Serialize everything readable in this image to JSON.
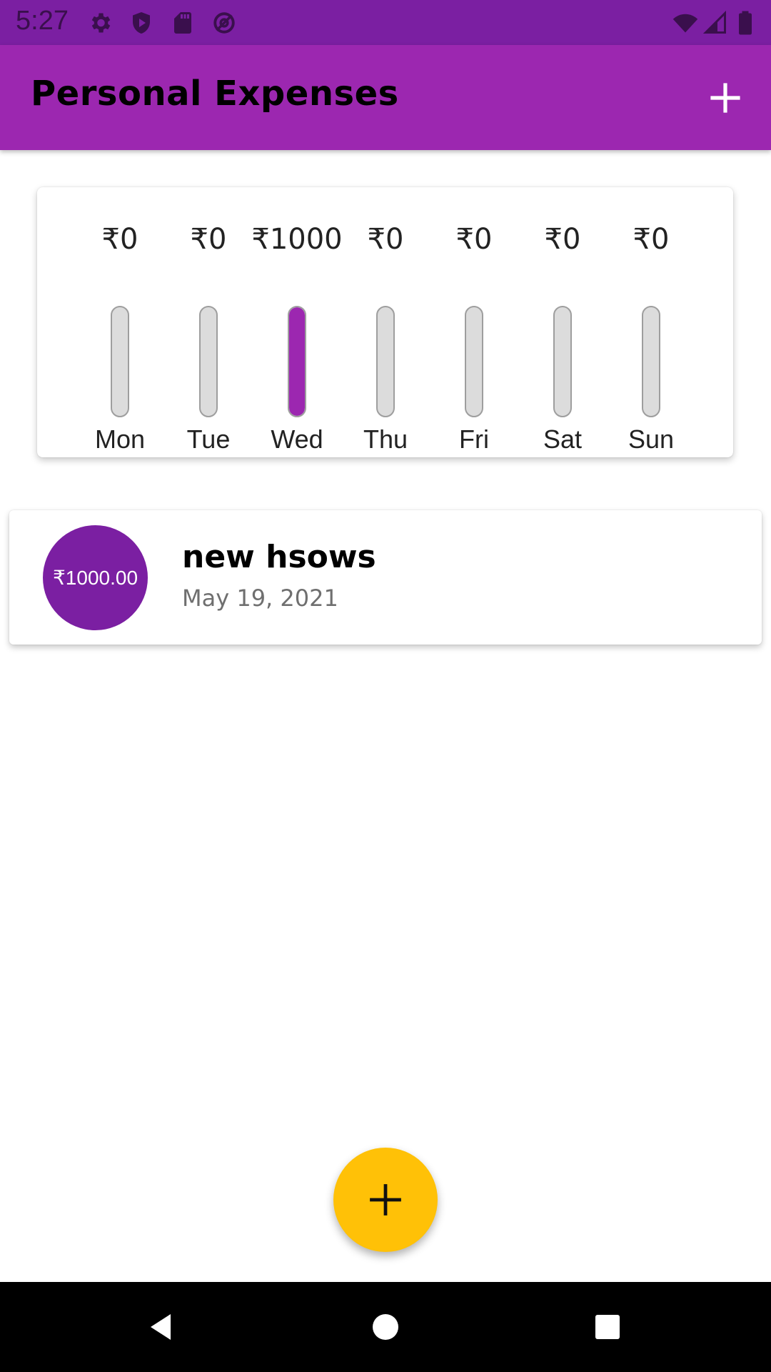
{
  "status_bar": {
    "time": "5:27",
    "icons": [
      "gear-icon",
      "shield-icon",
      "sd-card-icon",
      "at-sign-icon",
      "wifi-icon",
      "signal-icon",
      "battery-icon"
    ]
  },
  "app_bar": {
    "title": "Personal Expenses",
    "add_icon": "plus-icon"
  },
  "chart_data": {
    "type": "bar",
    "categories": [
      "Mon",
      "Tue",
      "Wed",
      "Thu",
      "Fri",
      "Sat",
      "Sun"
    ],
    "amount_labels": [
      "₹0",
      "₹0",
      "₹1000",
      "₹0",
      "₹0",
      "₹0",
      "₹0"
    ],
    "values": [
      0,
      0,
      1000,
      0,
      0,
      0,
      0
    ],
    "fill_fractions": [
      0,
      0,
      1,
      0,
      0,
      0,
      0
    ],
    "fill_color": "#9c27b0",
    "track_color": "#dcdcdc"
  },
  "transactions": [
    {
      "amount": "₹1000.00",
      "title": "new hsows",
      "date": "May 19, 2021"
    }
  ],
  "fab": {
    "icon": "plus-icon",
    "color": "#ffc107"
  },
  "nav_bar": {
    "icons": [
      "back-icon",
      "home-icon",
      "recents-icon"
    ]
  },
  "colors": {
    "primary": "#9c27b0",
    "primary_dark": "#7b1fa2",
    "accent": "#ffc107"
  }
}
